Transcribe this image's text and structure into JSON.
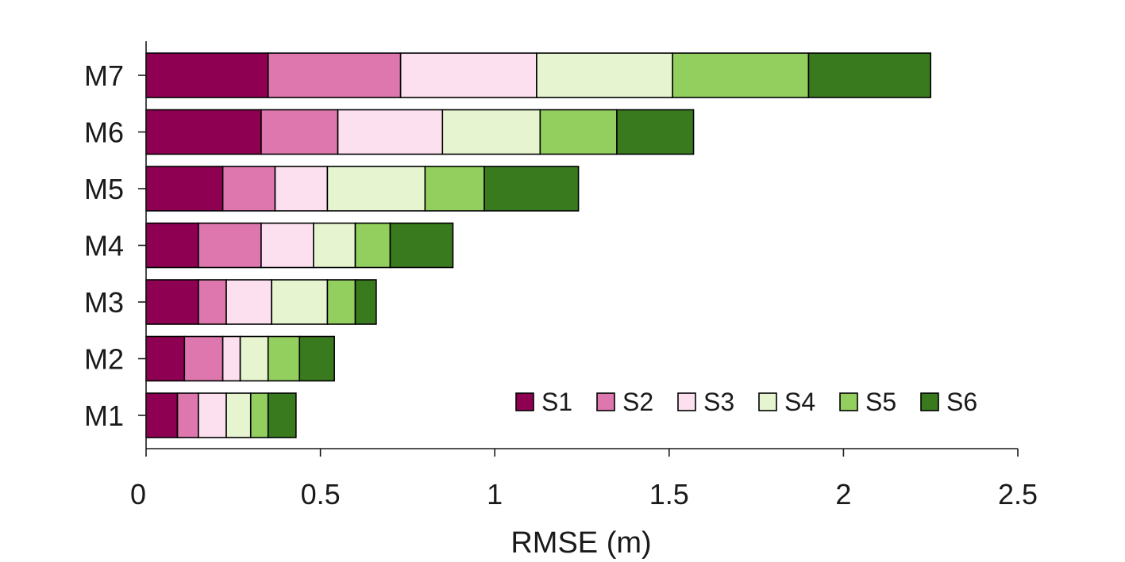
{
  "chart_data": {
    "type": "bar",
    "orientation": "horizontal",
    "stacked": true,
    "title": "",
    "xlabel": "RMSE (m)",
    "ylabel": "",
    "xlim": [
      0,
      2.5
    ],
    "x_ticks": [
      0,
      0.5,
      1,
      1.5,
      2,
      2.5
    ],
    "x_tick_labels": [
      "0",
      "0.5",
      "1",
      "1.5",
      "2",
      "2.5"
    ],
    "categories": [
      "M1",
      "M2",
      "M3",
      "M4",
      "M5",
      "M6",
      "M7"
    ],
    "series": [
      {
        "name": "S1",
        "color": "#8e0152",
        "values": [
          0.09,
          0.11,
          0.15,
          0.15,
          0.22,
          0.33,
          0.35
        ]
      },
      {
        "name": "S2",
        "color": "#de77ae",
        "values": [
          0.06,
          0.11,
          0.08,
          0.18,
          0.15,
          0.22,
          0.38
        ]
      },
      {
        "name": "S3",
        "color": "#fde0ef",
        "values": [
          0.08,
          0.05,
          0.13,
          0.15,
          0.15,
          0.3,
          0.39
        ]
      },
      {
        "name": "S4",
        "color": "#e6f5d0",
        "values": [
          0.07,
          0.08,
          0.16,
          0.12,
          0.28,
          0.28,
          0.39
        ]
      },
      {
        "name": "S5",
        "color": "#92cf5e",
        "values": [
          0.05,
          0.09,
          0.08,
          0.1,
          0.17,
          0.22,
          0.39
        ]
      },
      {
        "name": "S6",
        "color": "#387a1d",
        "values": [
          0.08,
          0.1,
          0.06,
          0.18,
          0.27,
          0.22,
          0.35
        ]
      }
    ],
    "legend_position": "bottom-right",
    "grid": false
  }
}
